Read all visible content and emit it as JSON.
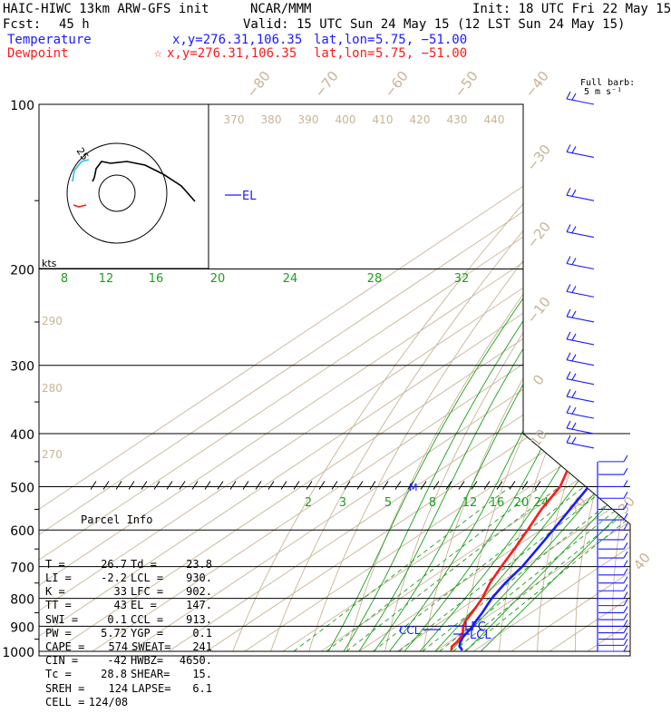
{
  "header": {
    "model": "HAIC-HIWC 13km ARW-GFS init",
    "org": "NCAR/MMM",
    "init": "Init: 18 UTC Fri 22 May 15",
    "fcst_label": "Fcst:",
    "fcst_value": "45 h",
    "valid": "Valid: 15 UTC Sun 24 May 15 (12 LST Sun 24 May 15)",
    "temperature_label": "Temperature",
    "temperature_xy": "x,y=276.31,106.35",
    "temperature_latlon_label": "lat,lon=",
    "temperature_latlon": "5.75, −51.00",
    "dewpoint_label": "Dewpoint",
    "dewpoint_marker": "☆",
    "dewpoint_xy": "x,y=276.31,106.35",
    "dewpoint_latlon_label": "lat,lon=",
    "dewpoint_latlon": "5.75, −51.00"
  },
  "barb_title": "Full barb:",
  "barb_unit": "5 m s⁻¹",
  "hodograph_label": "kts",
  "hodograph_ring_label": "25",
  "annotations": {
    "el": "EL",
    "lfc": "LFC",
    "lcl": "LCL",
    "ccl": "CCL",
    "m": "M"
  },
  "parcel_info": {
    "title": "Parcel Info",
    "rows": [
      [
        "T =",
        "26.7",
        "Td =",
        "23.8"
      ],
      [
        "LI =",
        "-2.2",
        "LCL =",
        "930."
      ],
      [
        "K =",
        "33",
        "LFC =",
        "902."
      ],
      [
        "TT =",
        "43",
        "EL =",
        "147."
      ],
      [
        "SWI =",
        "0.1",
        "CCL =",
        "913."
      ],
      [
        "PW =",
        "5.72",
        "YGP =",
        "0.1"
      ],
      [
        "CAPE =",
        "574",
        "SWEAT=",
        "241"
      ],
      [
        "CIN =",
        "-42",
        "HWBZ=",
        "4650."
      ],
      [
        "Tc =",
        "28.8",
        "SHEAR=",
        "15."
      ],
      [
        "SREH =",
        "124",
        "LAPSE=",
        "6.1"
      ],
      [
        "CELL =",
        "124/08",
        "",
        ""
      ]
    ]
  },
  "colors": {
    "temperature": "#1a1aff",
    "dewpoint": "#ff1a1a",
    "dry_adiabat": "#c8b496",
    "moist_adiabat": "#1aa01a",
    "mixing_ratio": "#1aa01a"
  },
  "chart_data": {
    "type": "line",
    "title": "",
    "x_axis": "temperature (skewed isotherms)",
    "y_axis": "pressure (hPa, log scale)",
    "ylim": [
      1000,
      100
    ],
    "pressure_ticks": [
      100,
      200,
      300,
      400,
      500,
      600,
      700,
      800,
      900,
      1000
    ],
    "isotherm_labels": [
      "−80",
      "−70",
      "−60",
      "−50",
      "−40",
      "−30",
      "−20",
      "−10",
      "0",
      "10",
      "20",
      "30",
      "40"
    ],
    "theta_labels_top": [
      "370",
      "380",
      "390",
      "400",
      "410",
      "420",
      "430",
      "440"
    ],
    "theta_labels_left": [
      "290",
      "280",
      "270"
    ],
    "moist_labels_200": [
      "8",
      "12",
      "16",
      "20",
      "24",
      "28",
      "32"
    ],
    "mixing_ratio_labels_500": [
      "2",
      "3",
      "5",
      "8",
      "12",
      "16",
      "20",
      "24"
    ],
    "series": [
      {
        "name": "Temperature",
        "pressure": [
          995,
          980,
          960,
          940,
          920,
          900,
          880,
          850,
          800,
          750,
          700,
          650,
          600,
          550,
          500,
          450,
          400,
          350,
          300,
          250,
          200,
          175,
          150,
          125,
          110,
          100
        ],
        "temperature": [
          26.7,
          24.5,
          22.8,
          21.6,
          20.8,
          20.0,
          18.8,
          17.2,
          14.0,
          11.5,
          9.5,
          6.5,
          3.2,
          -0.5,
          -4.5,
          -9.5,
          -15.5,
          -22.5,
          -31,
          -41.5,
          -53,
          -60,
          -67,
          -75,
          -80,
          -82
        ]
      },
      {
        "name": "Dewpoint",
        "pressure": [
          995,
          980,
          960,
          940,
          920,
          900,
          880,
          850,
          800,
          750,
          700,
          650,
          600,
          550,
          500,
          460,
          430,
          400,
          350,
          300,
          250,
          200,
          175,
          150,
          125,
          110,
          100
        ],
        "dewpoint": [
          23.8,
          22.5,
          22.0,
          21.0,
          19.5,
          17.5,
          16.0,
          14.5,
          11.5,
          7.5,
          4.0,
          0.5,
          -3.5,
          -8.0,
          -12.0,
          -17.5,
          -22.5,
          -25.5,
          -34.0,
          -44.0,
          -56.0,
          -69.0,
          -78.0,
          -85.0,
          -90.0,
          -92.0,
          -93.0
        ]
      }
    ],
    "wind_barbs": "shown along right edge from 1000 to 100 hPa"
  }
}
